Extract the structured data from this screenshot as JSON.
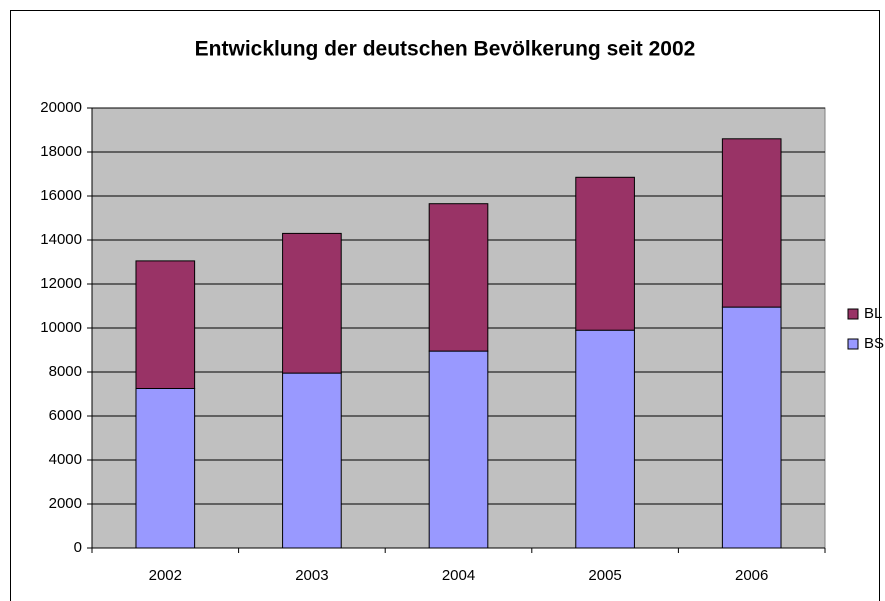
{
  "chart_data": {
    "type": "stacked_bar",
    "title": "Entwicklung der deutschen Bevölkerung seit 2002",
    "categories": [
      "2002",
      "2003",
      "2004",
      "2005",
      "2006"
    ],
    "series": [
      {
        "name": "BS",
        "color": "#9999ff",
        "values": [
          7250,
          7950,
          8950,
          9900,
          10950
        ]
      },
      {
        "name": "BL",
        "color": "#993366",
        "values": [
          5800,
          6350,
          6700,
          6950,
          7650
        ]
      }
    ],
    "ylim": [
      0,
      20000
    ],
    "yticks": [
      0,
      2000,
      4000,
      6000,
      8000,
      10000,
      12000,
      14000,
      16000,
      18000,
      20000
    ],
    "grid": true,
    "legend": "right"
  }
}
